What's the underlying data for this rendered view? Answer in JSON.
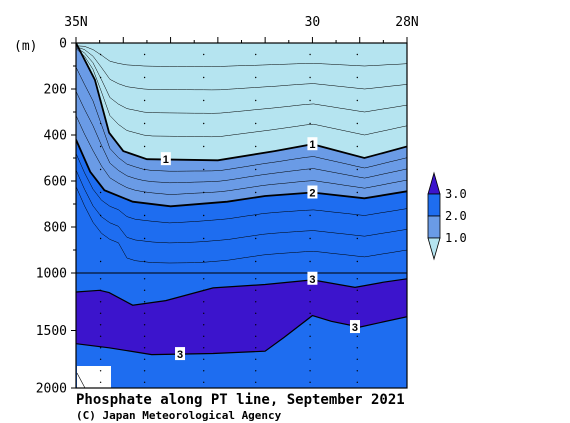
{
  "chart_data": {
    "type": "contour",
    "title": "Phosphate along PT line, September 2021",
    "credit": "(C) Japan Meteorological Agency",
    "y_unit_label": "(m)",
    "x_axis": {
      "ticks": [
        {
          "lat": 35,
          "label": "35N"
        },
        {
          "lat": 30,
          "label": "30"
        },
        {
          "lat": 28,
          "label": "28N"
        }
      ],
      "range": [
        35,
        28
      ]
    },
    "y_axis": {
      "upper": {
        "range": [
          0,
          1000
        ],
        "ticks": [
          0,
          200,
          400,
          600,
          800,
          1000
        ]
      },
      "lower": {
        "range": [
          1000,
          2000
        ],
        "ticks": [
          1500,
          2000
        ]
      },
      "tick_labels": [
        "0",
        "200",
        "400",
        "600",
        "800",
        "1000",
        "1500",
        "2000"
      ]
    },
    "levels": [
      1.0,
      2.0,
      3.0
    ],
    "colors": {
      "below_1": "#b5e4f0",
      "1_to_2": "#6a9be6",
      "2_to_3": "#1e6df0",
      "above_3": "#3c14cc",
      "missing": "#ffffff"
    },
    "legend": {
      "labels": [
        "3.0",
        "2.0",
        "1.0"
      ]
    },
    "contour_labels": [
      {
        "text": "1",
        "lat": 33.1,
        "depth": 505
      },
      {
        "text": "1",
        "lat": 30.0,
        "depth": 440
      },
      {
        "text": "2",
        "lat": 30.0,
        "depth": 650
      },
      {
        "text": "3",
        "lat": 30.0,
        "depth": 1050
      },
      {
        "text": "3",
        "lat": 29.1,
        "depth": 1470
      },
      {
        "text": "3",
        "lat": 32.8,
        "depth": 1705
      }
    ],
    "isolines": {
      "1.0": [
        [
          35,
          0
        ],
        [
          34.6,
          160
        ],
        [
          34.3,
          390
        ],
        [
          34.0,
          470
        ],
        [
          33.5,
          505
        ],
        [
          32.0,
          510
        ],
        [
          30.8,
          470
        ],
        [
          30.0,
          440
        ],
        [
          28.9,
          500
        ],
        [
          28,
          450
        ]
      ],
      "2.0": [
        [
          35,
          420
        ],
        [
          34.7,
          560
        ],
        [
          34.4,
          640
        ],
        [
          33.8,
          690
        ],
        [
          33.0,
          710
        ],
        [
          31.8,
          690
        ],
        [
          31.0,
          665
        ],
        [
          30.0,
          650
        ],
        [
          28.9,
          675
        ],
        [
          28,
          645
        ]
      ],
      "3.0_top": [
        [
          35,
          1165
        ],
        [
          34.5,
          1150
        ],
        [
          34.3,
          1170
        ],
        [
          33.8,
          1280
        ],
        [
          33.1,
          1240
        ],
        [
          32.1,
          1130
        ],
        [
          31.0,
          1100
        ],
        [
          30.0,
          1060
        ],
        [
          29.1,
          1125
        ],
        [
          28.5,
          1080
        ],
        [
          28,
          1050
        ]
      ],
      "3.0_bottom": [
        [
          35,
          1615
        ],
        [
          34.3,
          1650
        ],
        [
          33.4,
          1710
        ],
        [
          32.1,
          1700
        ],
        [
          31.0,
          1680
        ],
        [
          30.6,
          1560
        ],
        [
          30.0,
          1370
        ],
        [
          29.6,
          1420
        ],
        [
          29.0,
          1470
        ],
        [
          28,
          1380
        ]
      ]
    }
  }
}
